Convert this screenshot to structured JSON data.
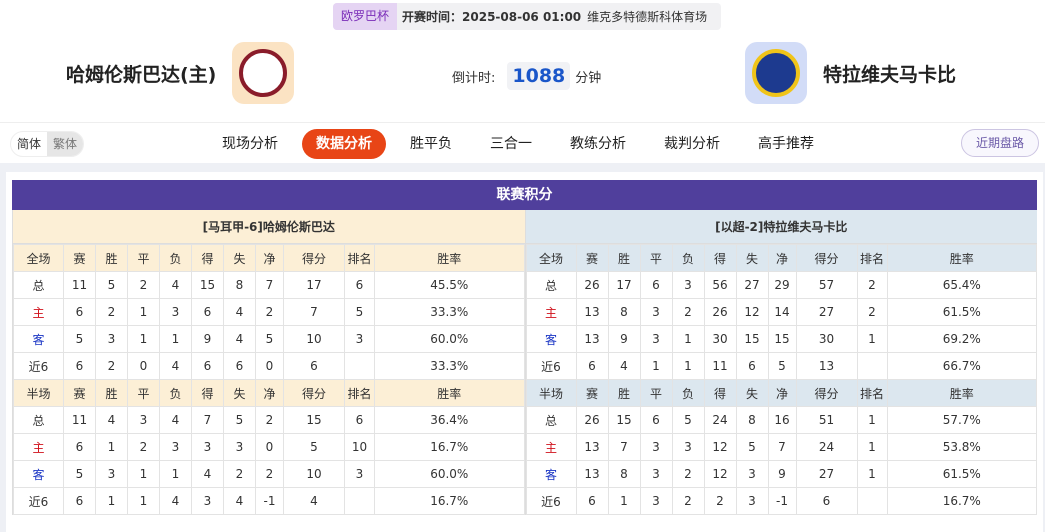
{
  "header": {
    "competition": "欧罗巴杯",
    "time_label": "开赛时间：2025-08-06 01:00",
    "venue": "维克多特德斯科体育场",
    "home_team": "哈姆伦斯巴达(主)",
    "away_team": "特拉维夫马卡比",
    "countdown_label": "倒计时:",
    "countdown_value": "1088",
    "countdown_unit": "分钟"
  },
  "nav": {
    "lang": [
      "简体",
      "繁体"
    ],
    "tabs": [
      "现场分析",
      "数据分析",
      "胜平负",
      "三合一",
      "教练分析",
      "裁判分析",
      "高手推荐"
    ],
    "active_tab": "数据分析",
    "recent_button": "近期盘路"
  },
  "standings": {
    "title": "联赛积分",
    "columns_full": [
      "全场",
      "赛",
      "胜",
      "平",
      "负",
      "得",
      "失",
      "净",
      "得分",
      "排名",
      "胜率"
    ],
    "columns_half": [
      "半场",
      "赛",
      "胜",
      "平",
      "负",
      "得",
      "失",
      "净",
      "得分",
      "排名",
      "胜率"
    ],
    "home": {
      "name": "[马耳甲-6]哈姆伦斯巴达",
      "full": [
        [
          "总",
          "11",
          "5",
          "2",
          "4",
          "15",
          "8",
          "7",
          "17",
          "6",
          "45.5%"
        ],
        [
          "主",
          "6",
          "2",
          "1",
          "3",
          "6",
          "4",
          "2",
          "7",
          "5",
          "33.3%"
        ],
        [
          "客",
          "5",
          "3",
          "1",
          "1",
          "9",
          "4",
          "5",
          "10",
          "3",
          "60.0%"
        ],
        [
          "近6",
          "6",
          "2",
          "0",
          "4",
          "6",
          "6",
          "0",
          "6",
          "",
          "33.3%"
        ]
      ],
      "half": [
        [
          "总",
          "11",
          "4",
          "3",
          "4",
          "7",
          "5",
          "2",
          "15",
          "6",
          "36.4%"
        ],
        [
          "主",
          "6",
          "1",
          "2",
          "3",
          "3",
          "3",
          "0",
          "5",
          "10",
          "16.7%"
        ],
        [
          "客",
          "5",
          "3",
          "1",
          "1",
          "4",
          "2",
          "2",
          "10",
          "3",
          "60.0%"
        ],
        [
          "近6",
          "6",
          "1",
          "1",
          "4",
          "3",
          "4",
          "-1",
          "4",
          "",
          "16.7%"
        ]
      ]
    },
    "away": {
      "name": "[以超-2]特拉维夫马卡比",
      "full": [
        [
          "总",
          "26",
          "17",
          "6",
          "3",
          "56",
          "27",
          "29",
          "57",
          "2",
          "65.4%"
        ],
        [
          "主",
          "13",
          "8",
          "3",
          "2",
          "26",
          "12",
          "14",
          "27",
          "2",
          "61.5%"
        ],
        [
          "客",
          "13",
          "9",
          "3",
          "1",
          "30",
          "15",
          "15",
          "30",
          "1",
          "69.2%"
        ],
        [
          "近6",
          "6",
          "4",
          "1",
          "1",
          "11",
          "6",
          "5",
          "13",
          "",
          "66.7%"
        ]
      ],
      "half": [
        [
          "总",
          "26",
          "15",
          "6",
          "5",
          "24",
          "8",
          "16",
          "51",
          "1",
          "57.7%"
        ],
        [
          "主",
          "13",
          "7",
          "3",
          "3",
          "12",
          "5",
          "7",
          "24",
          "1",
          "53.8%"
        ],
        [
          "客",
          "13",
          "8",
          "3",
          "2",
          "12",
          "3",
          "9",
          "27",
          "1",
          "61.5%"
        ],
        [
          "近6",
          "6",
          "1",
          "3",
          "2",
          "2",
          "3",
          "-1",
          "6",
          "",
          "16.7%"
        ]
      ]
    }
  }
}
